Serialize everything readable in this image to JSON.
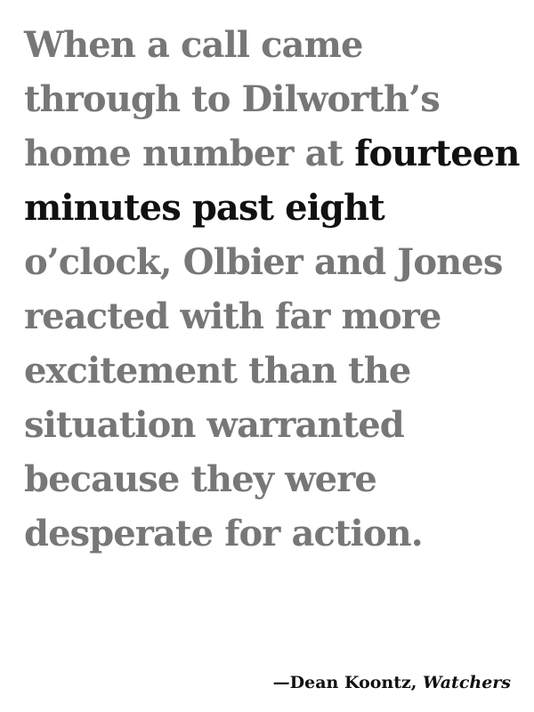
{
  "quote": {
    "before": "When a call came through to Dilworth’s home number at ",
    "highlight": "fourteen minutes past eight",
    "after": " o’clock, Olbier and Jones reacted with far more excitement than the situation warranted because they were desperate for action."
  },
  "attribution": {
    "author": "—Dean Koontz,",
    "title": "Watchers"
  },
  "colors": {
    "text_muted": "#777777",
    "text_highlight": "#111111",
    "background": "#ffffff"
  }
}
